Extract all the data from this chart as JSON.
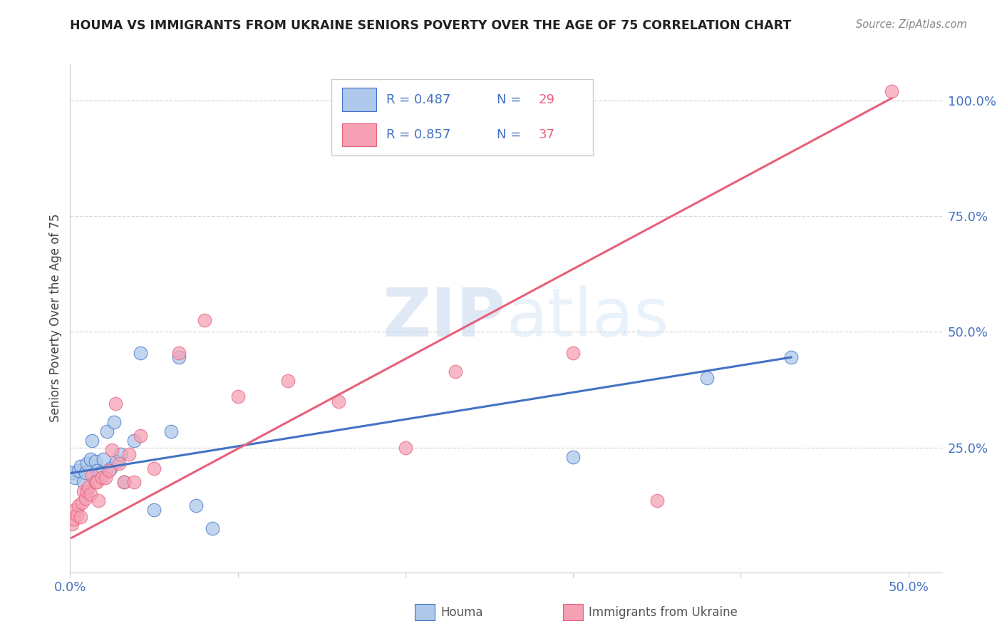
{
  "title": "HOUMA VS IMMIGRANTS FROM UKRAINE SENIORS POVERTY OVER THE AGE OF 75 CORRELATION CHART",
  "source": "Source: ZipAtlas.com",
  "ylabel": "Seniors Poverty Over the Age of 75",
  "xlim": [
    0.0,
    0.52
  ],
  "ylim": [
    -0.02,
    1.08
  ],
  "houma_R": 0.487,
  "houma_N": 29,
  "ukraine_R": 0.857,
  "ukraine_N": 37,
  "houma_color": "#adc8ea",
  "ukraine_color": "#f5a0b5",
  "houma_line_color": "#4472c4",
  "ukraine_line_color": "#e8607a",
  "houma_scatter_x": [
    0.001,
    0.003,
    0.005,
    0.006,
    0.008,
    0.009,
    0.01,
    0.012,
    0.013,
    0.015,
    0.016,
    0.018,
    0.02,
    0.022,
    0.024,
    0.026,
    0.028,
    0.03,
    0.032,
    0.038,
    0.042,
    0.05,
    0.06,
    0.065,
    0.075,
    0.085,
    0.3,
    0.38,
    0.43
  ],
  "houma_scatter_y": [
    0.195,
    0.185,
    0.2,
    0.21,
    0.175,
    0.195,
    0.215,
    0.225,
    0.265,
    0.22,
    0.2,
    0.195,
    0.225,
    0.285,
    0.205,
    0.305,
    0.22,
    0.235,
    0.175,
    0.265,
    0.455,
    0.115,
    0.285,
    0.445,
    0.125,
    0.075,
    0.23,
    0.4,
    0.445
  ],
  "ukraine_scatter_x": [
    0.001,
    0.002,
    0.003,
    0.004,
    0.005,
    0.006,
    0.007,
    0.008,
    0.009,
    0.01,
    0.011,
    0.012,
    0.013,
    0.015,
    0.016,
    0.017,
    0.019,
    0.021,
    0.023,
    0.025,
    0.027,
    0.029,
    0.032,
    0.035,
    0.038,
    0.042,
    0.05,
    0.065,
    0.08,
    0.1,
    0.13,
    0.16,
    0.2,
    0.23,
    0.3,
    0.35,
    0.49
  ],
  "ukraine_scatter_y": [
    0.085,
    0.095,
    0.115,
    0.105,
    0.125,
    0.1,
    0.13,
    0.155,
    0.14,
    0.155,
    0.165,
    0.15,
    0.19,
    0.175,
    0.175,
    0.135,
    0.185,
    0.185,
    0.2,
    0.245,
    0.345,
    0.215,
    0.175,
    0.235,
    0.175,
    0.275,
    0.205,
    0.455,
    0.525,
    0.36,
    0.395,
    0.35,
    0.25,
    0.415,
    0.455,
    0.135,
    1.02
  ],
  "houma_line_x": [
    0.001,
    0.43
  ],
  "houma_line_y": [
    0.195,
    0.445
  ],
  "ukraine_line_x": [
    0.001,
    0.49
  ],
  "ukraine_line_y": [
    0.055,
    1.005
  ],
  "watermark_zip": "ZIP",
  "watermark_atlas": "atlas",
  "background_color": "#ffffff",
  "grid_color": "#d8d8d8",
  "ytick_positions": [
    0.25,
    0.5,
    0.75,
    1.0
  ],
  "ytick_labels": [
    "25.0%",
    "50.0%",
    "75.0%",
    "100.0%"
  ],
  "xtick_positions": [
    0.0,
    0.5
  ],
  "xtick_labels": [
    "0.0%",
    "50.0%"
  ]
}
